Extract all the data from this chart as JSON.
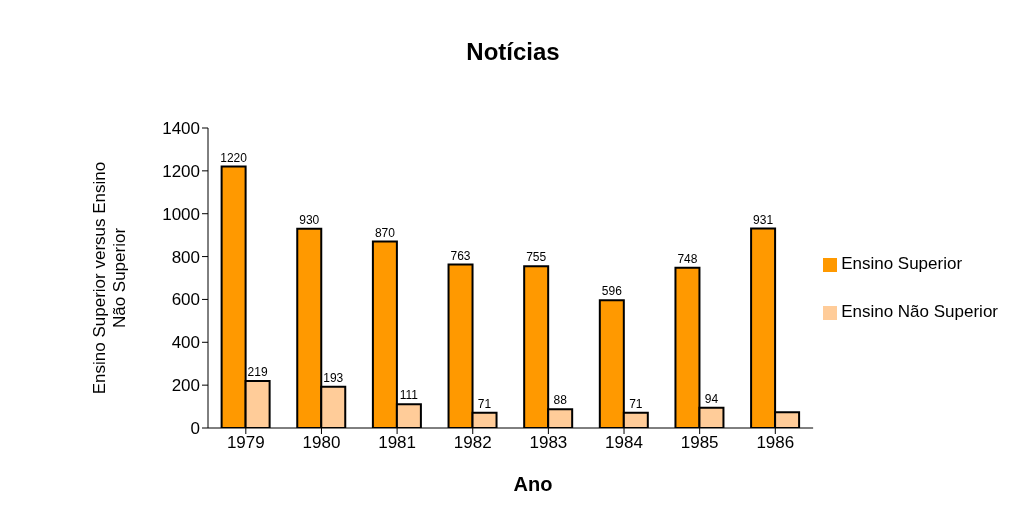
{
  "chart_data": {
    "type": "bar",
    "title": "Notícias",
    "xlabel": "Ano",
    "ylabel": "Ensino Superior versus Ensino Não Superior",
    "categories": [
      "1979",
      "1980",
      "1981",
      "1982",
      "1983",
      "1984",
      "1985",
      "1986"
    ],
    "series": [
      {
        "name": "Ensino Superior",
        "color": "#ff9900",
        "values": [
          1220,
          930,
          870,
          763,
          755,
          596,
          748,
          931
        ],
        "value_labels": [
          "1220",
          "930",
          "870",
          "763",
          "755",
          "596",
          "748",
          "931"
        ]
      },
      {
        "name": "Ensino Não Superior",
        "color": "#ffcc99",
        "values": [
          219,
          193,
          111,
          71,
          88,
          71,
          94,
          74
        ],
        "value_labels": [
          "219",
          "193",
          "111",
          "71",
          "88",
          "71",
          "94",
          null
        ]
      }
    ],
    "ylim": [
      0,
      1400
    ],
    "yticks": [
      0,
      200,
      400,
      600,
      800,
      1000,
      1200,
      1400
    ],
    "legend": "right"
  }
}
